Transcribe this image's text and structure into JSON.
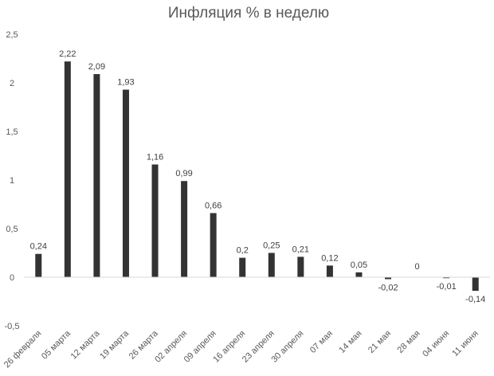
{
  "chart_data": {
    "type": "bar",
    "title": "Инфляция % в неделю",
    "xlabel": "",
    "ylabel": "",
    "categories": [
      "26 февраля",
      "05 марта",
      "12 марта",
      "19 марта",
      "26 марта",
      "02 апреля",
      "09 апреля",
      "16 апреля",
      "23 апреля",
      "30 апреля",
      "07 мая",
      "14 мая",
      "21 мая",
      "28 мая",
      "04 июня",
      "11 июня"
    ],
    "values": [
      0.24,
      2.22,
      2.09,
      1.93,
      1.16,
      0.99,
      0.66,
      0.2,
      0.25,
      0.21,
      0.12,
      0.05,
      -0.02,
      0,
      -0.01,
      -0.14
    ],
    "value_labels": [
      "0,24",
      "2,22",
      "2,09",
      "1,93",
      "1,16",
      "0,99",
      "0,66",
      "0,2",
      "0,25",
      "0,21",
      "0,12",
      "0,05",
      "-0,02",
      "0",
      "-0,01",
      "-0,14"
    ],
    "yticks": [
      2.5,
      2,
      1.5,
      1,
      0.5,
      0,
      -0.5
    ],
    "ytick_labels": [
      "2,5",
      "2",
      "1,5",
      "1",
      "0,5",
      "0",
      "-0,5"
    ],
    "ylim": [
      -0.5,
      2.5
    ],
    "grid": false,
    "legend": "none",
    "bar_color": "#333333",
    "axis_color": "#d9d9d9"
  }
}
